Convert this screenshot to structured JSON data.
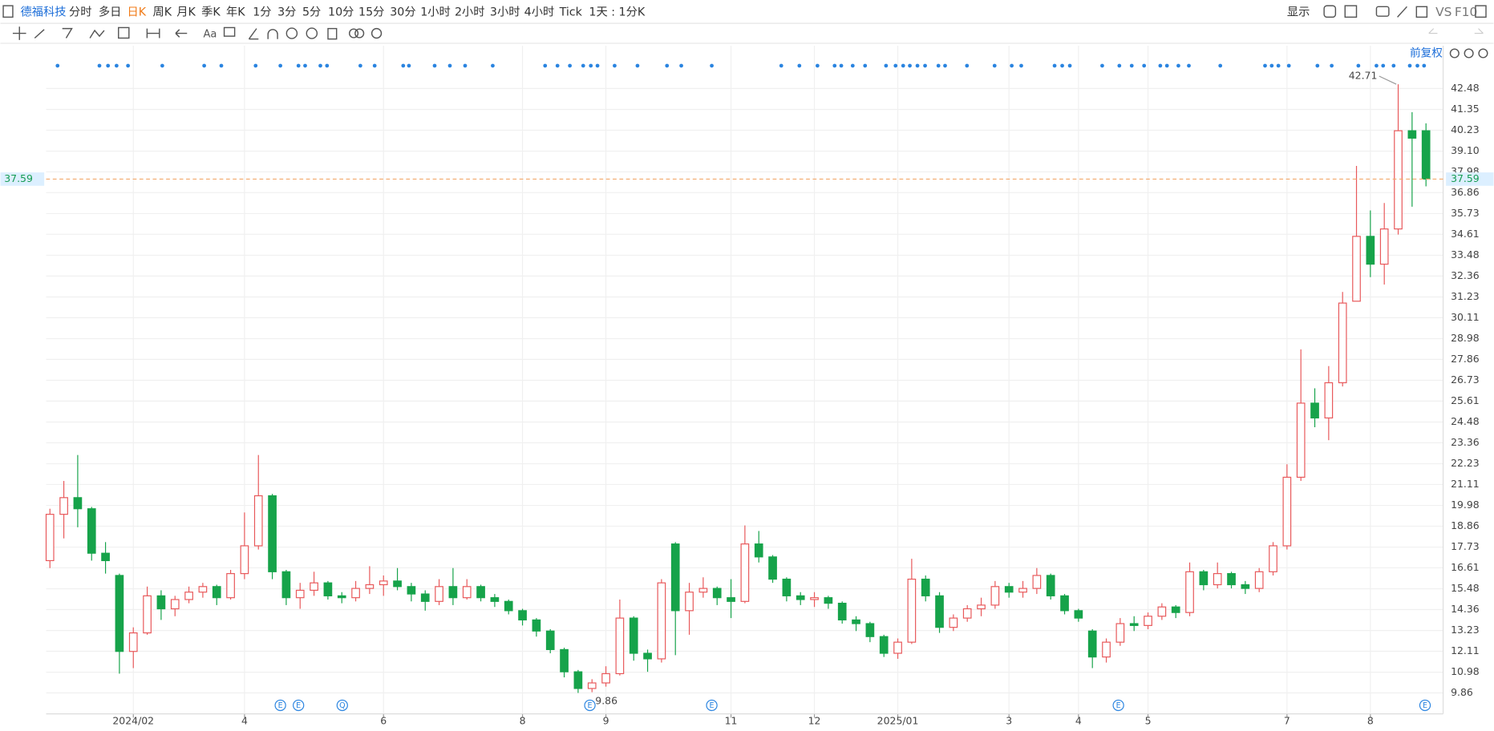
{
  "toolbar": {
    "stock_name": "德福科技",
    "periods": [
      "分时",
      "多日",
      "日K",
      "周K",
      "月K",
      "季K",
      "年K",
      "1分",
      "3分",
      "5分",
      "10分",
      "15分",
      "30分",
      "1小时",
      "2小时",
      "3小时",
      "4小时",
      "Tick"
    ],
    "selected_index": 2,
    "interval": "1天 : 1分K",
    "display": "显示",
    "vs": "VS",
    "f10": "F10",
    "adjust": "前复权"
  },
  "chart_data": {
    "type": "candlestick",
    "up_color": "#e8585a",
    "down_color": "#16a34a",
    "categories": [
      null,
      null,
      null,
      null,
      null,
      null,
      "2024/02",
      null,
      null,
      null,
      null,
      null,
      null,
      null,
      "4",
      null,
      null,
      null,
      null,
      null,
      null,
      null,
      null,
      null,
      "6",
      null,
      null,
      null,
      null,
      null,
      null,
      null,
      null,
      null,
      "8",
      null,
      null,
      null,
      null,
      null,
      "9",
      null,
      null,
      null,
      null,
      null,
      null,
      null,
      null,
      "11",
      null,
      null,
      null,
      null,
      null,
      "12",
      null,
      null,
      null,
      null,
      null,
      "2025/01",
      null,
      null,
      null,
      null,
      null,
      null,
      null,
      "3",
      null,
      null,
      null,
      null,
      "4",
      null,
      null,
      null,
      null,
      "5",
      null,
      null,
      null,
      null,
      null,
      null,
      null,
      null,
      null,
      "7",
      null,
      null,
      null,
      null,
      null,
      "8",
      null,
      null,
      null,
      null
    ],
    "candles": [
      [
        17.0,
        19.8,
        16.6,
        19.5
      ],
      [
        19.5,
        21.3,
        18.2,
        20.4
      ],
      [
        20.4,
        22.7,
        18.8,
        19.8
      ],
      [
        19.8,
        19.9,
        17.0,
        17.4
      ],
      [
        17.4,
        18.0,
        16.3,
        17.0
      ],
      [
        16.2,
        16.3,
        10.9,
        12.1
      ],
      [
        12.1,
        13.4,
        11.2,
        13.1
      ],
      [
        13.1,
        15.6,
        13.0,
        15.1
      ],
      [
        15.1,
        15.4,
        13.8,
        14.4
      ],
      [
        14.4,
        15.1,
        14.0,
        14.9
      ],
      [
        14.9,
        15.6,
        14.7,
        15.3
      ],
      [
        15.3,
        15.8,
        15.0,
        15.6
      ],
      [
        15.6,
        15.7,
        14.6,
        15.0
      ],
      [
        15.0,
        16.5,
        14.9,
        16.3
      ],
      [
        16.3,
        19.6,
        16.0,
        17.8
      ],
      [
        17.8,
        22.7,
        17.6,
        20.5
      ],
      [
        20.5,
        20.6,
        16.0,
        16.4
      ],
      [
        16.4,
        16.5,
        14.6,
        15.0
      ],
      [
        15.0,
        15.8,
        14.4,
        15.4
      ],
      [
        15.4,
        16.4,
        15.1,
        15.8
      ],
      [
        15.8,
        15.9,
        14.9,
        15.1
      ],
      [
        15.1,
        15.3,
        14.7,
        15.0
      ],
      [
        15.0,
        15.9,
        14.8,
        15.5
      ],
      [
        15.5,
        16.7,
        15.2,
        15.7
      ],
      [
        15.7,
        16.2,
        15.1,
        15.9
      ],
      [
        15.9,
        16.6,
        15.4,
        15.6
      ],
      [
        15.6,
        15.8,
        14.8,
        15.2
      ],
      [
        15.2,
        15.4,
        14.3,
        14.8
      ],
      [
        14.8,
        16.0,
        14.6,
        15.6
      ],
      [
        15.6,
        16.6,
        14.6,
        15.0
      ],
      [
        15.0,
        16.0,
        14.9,
        15.6
      ],
      [
        15.6,
        15.7,
        14.8,
        15.0
      ],
      [
        15.0,
        15.2,
        14.5,
        14.8
      ],
      [
        14.8,
        14.9,
        14.1,
        14.3
      ],
      [
        14.3,
        14.4,
        13.5,
        13.8
      ],
      [
        13.8,
        13.9,
        12.9,
        13.2
      ],
      [
        13.2,
        13.3,
        12.0,
        12.2
      ],
      [
        12.2,
        12.3,
        10.7,
        11.0
      ],
      [
        11.0,
        11.1,
        9.86,
        10.1
      ],
      [
        10.1,
        10.6,
        9.9,
        10.4
      ],
      [
        10.4,
        11.3,
        10.2,
        10.9
      ],
      [
        10.9,
        14.9,
        10.8,
        13.9
      ],
      [
        13.9,
        14.0,
        11.6,
        12.0
      ],
      [
        12.0,
        12.2,
        11.0,
        11.7
      ],
      [
        11.7,
        16.0,
        11.5,
        15.8
      ],
      [
        17.9,
        18.0,
        11.9,
        14.3
      ],
      [
        14.3,
        15.8,
        13.0,
        15.3
      ],
      [
        15.3,
        16.1,
        15.0,
        15.5
      ],
      [
        15.5,
        15.6,
        14.6,
        15.0
      ],
      [
        15.0,
        16.0,
        13.9,
        14.8
      ],
      [
        14.8,
        18.9,
        14.7,
        17.9
      ],
      [
        17.9,
        18.6,
        16.9,
        17.2
      ],
      [
        17.2,
        17.3,
        15.8,
        16.0
      ],
      [
        16.0,
        16.1,
        14.8,
        15.1
      ],
      [
        15.1,
        15.3,
        14.6,
        14.9
      ],
      [
        14.9,
        15.3,
        14.5,
        15.0
      ],
      [
        15.0,
        15.1,
        14.4,
        14.7
      ],
      [
        14.7,
        14.8,
        13.6,
        13.8
      ],
      [
        13.8,
        14.0,
        13.2,
        13.6
      ],
      [
        13.6,
        13.7,
        12.6,
        12.9
      ],
      [
        12.9,
        13.0,
        11.8,
        12.0
      ],
      [
        12.0,
        12.8,
        11.7,
        12.6
      ],
      [
        12.6,
        17.1,
        12.5,
        16.0
      ],
      [
        16.0,
        16.2,
        14.8,
        15.1
      ],
      [
        15.1,
        15.3,
        13.1,
        13.4
      ],
      [
        13.4,
        14.1,
        13.2,
        13.9
      ],
      [
        13.9,
        14.6,
        13.7,
        14.4
      ],
      [
        14.4,
        15.0,
        14.0,
        14.6
      ],
      [
        14.6,
        15.9,
        14.4,
        15.6
      ],
      [
        15.6,
        15.8,
        15.0,
        15.3
      ],
      [
        15.3,
        15.9,
        15.0,
        15.5
      ],
      [
        15.5,
        16.6,
        15.2,
        16.2
      ],
      [
        16.2,
        16.3,
        14.9,
        15.1
      ],
      [
        15.1,
        15.2,
        14.1,
        14.3
      ],
      [
        14.3,
        14.4,
        13.7,
        13.9
      ],
      [
        13.2,
        13.3,
        11.2,
        11.8
      ],
      [
        11.8,
        12.8,
        11.5,
        12.6
      ],
      [
        12.6,
        13.9,
        12.4,
        13.6
      ],
      [
        13.6,
        14.0,
        13.2,
        13.5
      ],
      [
        13.5,
        14.2,
        13.3,
        14.0
      ],
      [
        14.0,
        14.7,
        13.8,
        14.5
      ],
      [
        14.5,
        14.6,
        13.9,
        14.2
      ],
      [
        14.2,
        16.9,
        14.0,
        16.4
      ],
      [
        16.4,
        16.5,
        15.4,
        15.7
      ],
      [
        15.7,
        16.9,
        15.5,
        16.3
      ],
      [
        16.3,
        16.4,
        15.5,
        15.7
      ],
      [
        15.7,
        15.9,
        15.2,
        15.5
      ],
      [
        15.5,
        16.6,
        15.3,
        16.4
      ],
      [
        16.4,
        18.0,
        16.2,
        17.8
      ],
      [
        17.8,
        22.2,
        17.6,
        21.5
      ],
      [
        21.5,
        28.4,
        21.3,
        25.5
      ],
      [
        25.5,
        26.3,
        24.2,
        24.7
      ],
      [
        24.7,
        27.5,
        23.5,
        26.6
      ],
      [
        26.6,
        31.5,
        26.4,
        30.9
      ],
      [
        31.0,
        38.3,
        31.0,
        34.5
      ],
      [
        34.5,
        35.9,
        32.3,
        33.0
      ],
      [
        33.0,
        36.3,
        31.9,
        34.9
      ],
      [
        34.9,
        42.71,
        34.6,
        40.2
      ],
      [
        40.2,
        41.2,
        36.1,
        39.8
      ],
      [
        40.2,
        40.6,
        37.2,
        37.59
      ]
    ],
    "ylim": [
      8.73,
      44.79
    ],
    "yticks": [
      42.48,
      41.35,
      40.23,
      {
        "value": 39.1,
        "label": "39.10"
      },
      37.98,
      36.86,
      35.73,
      34.61,
      33.48,
      32.36,
      31.23,
      30.11,
      28.98,
      27.86,
      26.73,
      25.61,
      24.48,
      23.36,
      22.23,
      21.11,
      19.98,
      18.86,
      17.73,
      16.61,
      15.48,
      14.36,
      13.23,
      12.11,
      10.98,
      9.86
    ],
    "grid": true,
    "events": [
      "E",
      "E",
      "Q",
      "E",
      "E",
      "E",
      "E"
    ]
  }
}
